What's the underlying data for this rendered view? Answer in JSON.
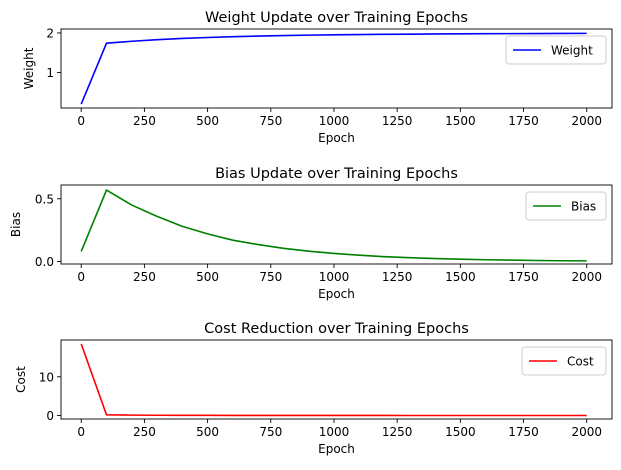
{
  "chart_data": [
    {
      "type": "line",
      "title": "Weight Update over Training Epochs",
      "xlabel": "Epoch",
      "ylabel": "Weight",
      "xlim": [
        -80,
        2100
      ],
      "ylim": [
        0.1,
        2.1
      ],
      "xticks": [
        0,
        250,
        500,
        750,
        1000,
        1250,
        1500,
        1750,
        2000
      ],
      "yticks": [
        1,
        2
      ],
      "legend": "top-right",
      "grid": false,
      "series": [
        {
          "name": "Weight",
          "color": "#0000ff",
          "x": [
            0,
            100,
            200,
            300,
            400,
            500,
            600,
            700,
            800,
            900,
            1000,
            1100,
            1200,
            1300,
            1400,
            1500,
            1600,
            1700,
            1800,
            1900,
            2000
          ],
          "y": [
            0.2,
            1.74,
            1.79,
            1.83,
            1.86,
            1.885,
            1.905,
            1.92,
            1.935,
            1.945,
            1.953,
            1.96,
            1.965,
            1.97,
            1.974,
            1.978,
            1.981,
            1.983,
            1.985,
            1.987,
            1.989
          ]
        }
      ]
    },
    {
      "type": "line",
      "title": "Bias Update over Training Epochs",
      "xlabel": "Epoch",
      "ylabel": "Bias",
      "xlim": [
        -80,
        2100
      ],
      "ylim": [
        -0.02,
        0.61
      ],
      "xticks": [
        0,
        250,
        500,
        750,
        1000,
        1250,
        1500,
        1750,
        2000
      ],
      "yticks": [
        0.0,
        0.5
      ],
      "yticklabels": [
        "0.0",
        "0.5"
      ],
      "legend": "top-right",
      "grid": false,
      "series": [
        {
          "name": "Bias",
          "color": "#008000",
          "x": [
            0,
            100,
            200,
            300,
            400,
            500,
            600,
            700,
            800,
            900,
            1000,
            1100,
            1200,
            1300,
            1400,
            1500,
            1600,
            1700,
            1800,
            1900,
            2000
          ],
          "y": [
            0.08,
            0.57,
            0.45,
            0.36,
            0.28,
            0.22,
            0.17,
            0.135,
            0.105,
            0.082,
            0.064,
            0.05,
            0.038,
            0.03,
            0.023,
            0.018,
            0.014,
            0.011,
            0.008,
            0.006,
            0.005
          ]
        }
      ]
    },
    {
      "type": "line",
      "title": "Cost Reduction over Training Epochs",
      "xlabel": "Epoch",
      "ylabel": "Cost",
      "xlim": [
        -80,
        2100
      ],
      "ylim": [
        -0.9,
        19.5
      ],
      "xticks": [
        0,
        250,
        500,
        750,
        1000,
        1250,
        1500,
        1750,
        2000
      ],
      "yticks": [
        0,
        10
      ],
      "legend": "top-right",
      "grid": false,
      "series": [
        {
          "name": "Cost",
          "color": "#ff0000",
          "x": [
            0,
            100,
            200,
            300,
            400,
            500,
            600,
            700,
            800,
            900,
            1000,
            1100,
            1200,
            1300,
            1400,
            1500,
            1600,
            1700,
            1800,
            1900,
            2000
          ],
          "y": [
            18.5,
            0.18,
            0.1,
            0.07,
            0.05,
            0.04,
            0.03,
            0.025,
            0.02,
            0.015,
            0.012,
            0.01,
            0.008,
            0.007,
            0.006,
            0.005,
            0.004,
            0.003,
            0.003,
            0.002,
            0.002
          ]
        }
      ]
    }
  ]
}
